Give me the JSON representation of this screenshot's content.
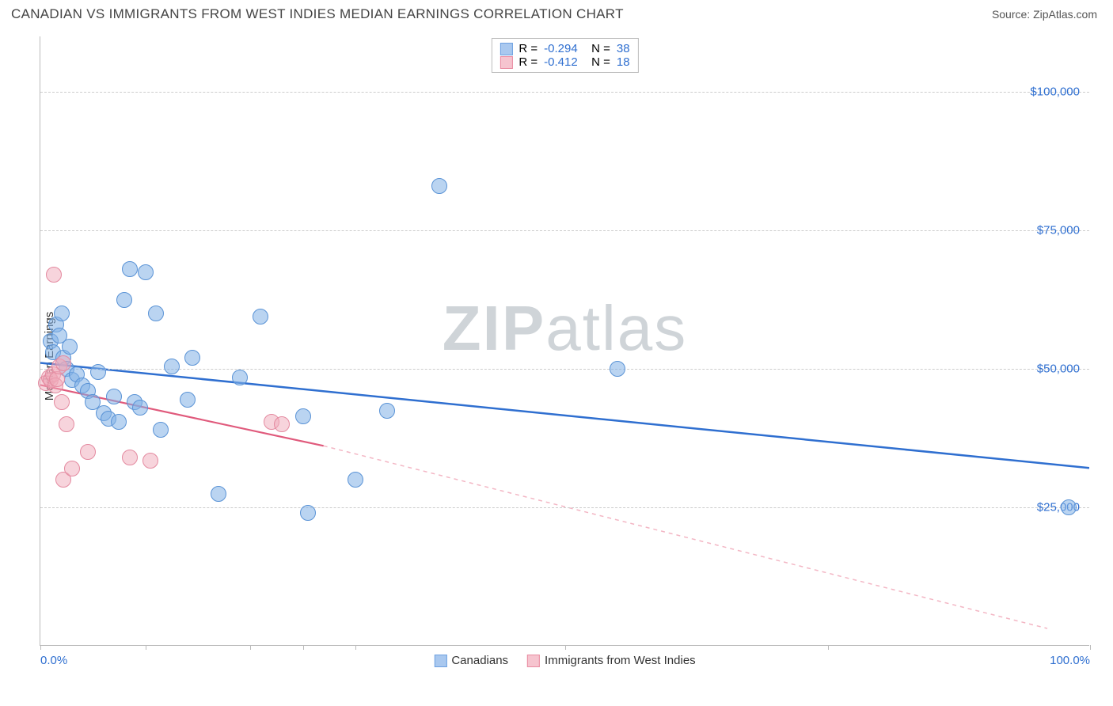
{
  "header": {
    "title": "CANADIAN VS IMMIGRANTS FROM WEST INDIES MEDIAN EARNINGS CORRELATION CHART",
    "source_prefix": "Source: ",
    "source_link": "ZipAtlas.com"
  },
  "chart": {
    "type": "scatter",
    "ylabel": "Median Earnings",
    "background_color": "#ffffff",
    "grid_color": "#cccccc",
    "axis_color": "#bbbbbb",
    "xlim": [
      0,
      100
    ],
    "ylim": [
      0,
      110000
    ],
    "xticks": [
      0,
      10,
      20,
      25,
      30,
      50,
      75,
      100
    ],
    "xtick_labels": {
      "0": "0.0%",
      "100": "100.0%"
    },
    "xtick_color": "#2f6fd0",
    "yticks": [
      25000,
      50000,
      75000,
      100000
    ],
    "ytick_labels": [
      "$25,000",
      "$50,000",
      "$75,000",
      "$100,000"
    ],
    "ytick_color": "#2f6fd0",
    "watermark": {
      "zip": "ZIP",
      "atlas": "atlas",
      "color": "#cfd4d8"
    },
    "legend_top": {
      "r_label": "R =",
      "n_label": "N =",
      "series": [
        {
          "swatch_fill": "#a9c8ef",
          "swatch_border": "#6da0e0",
          "r": "-0.294",
          "n": "38",
          "value_color": "#2f6fd0"
        },
        {
          "swatch_fill": "#f6c4cf",
          "swatch_border": "#e98ba1",
          "r": "-0.412",
          "n": "18",
          "value_color": "#2f6fd0"
        }
      ]
    },
    "legend_bottom": [
      {
        "swatch_fill": "#a9c8ef",
        "swatch_border": "#6da0e0",
        "label": "Canadians"
      },
      {
        "swatch_fill": "#f6c4cf",
        "swatch_border": "#e98ba1",
        "label": "Immigrants from West Indies"
      }
    ],
    "series": [
      {
        "name": "canadians",
        "marker_fill": "rgba(130,176,230,0.55)",
        "marker_stroke": "#5a93d6",
        "marker_radius": 10,
        "trend": {
          "x1": 0,
          "y1": 51000,
          "x2": 100,
          "y2": 32000,
          "stroke": "#2f6fd0",
          "width": 2.5,
          "dash": ""
        },
        "points": [
          {
            "x": 1.0,
            "y": 55000
          },
          {
            "x": 1.2,
            "y": 53000
          },
          {
            "x": 1.5,
            "y": 58000
          },
          {
            "x": 2.0,
            "y": 60000
          },
          {
            "x": 2.2,
            "y": 52000
          },
          {
            "x": 2.5,
            "y": 50000
          },
          {
            "x": 1.8,
            "y": 56000
          },
          {
            "x": 3.0,
            "y": 48000
          },
          {
            "x": 3.5,
            "y": 49000
          },
          {
            "x": 4.0,
            "y": 47000
          },
          {
            "x": 4.5,
            "y": 46000
          },
          {
            "x": 5.0,
            "y": 44000
          },
          {
            "x": 5.5,
            "y": 49500
          },
          {
            "x": 6.0,
            "y": 42000
          },
          {
            "x": 6.5,
            "y": 41000
          },
          {
            "x": 7.0,
            "y": 45000
          },
          {
            "x": 7.5,
            "y": 40500
          },
          {
            "x": 8.0,
            "y": 62500
          },
          {
            "x": 8.5,
            "y": 68000
          },
          {
            "x": 9.0,
            "y": 44000
          },
          {
            "x": 9.5,
            "y": 43000
          },
          {
            "x": 10.0,
            "y": 67500
          },
          {
            "x": 11.0,
            "y": 60000
          },
          {
            "x": 11.5,
            "y": 39000
          },
          {
            "x": 12.5,
            "y": 50500
          },
          {
            "x": 14.0,
            "y": 44500
          },
          {
            "x": 14.5,
            "y": 52000
          },
          {
            "x": 17.0,
            "y": 27500
          },
          {
            "x": 19.0,
            "y": 48500
          },
          {
            "x": 21.0,
            "y": 59500
          },
          {
            "x": 25.0,
            "y": 41500
          },
          {
            "x": 25.5,
            "y": 24000
          },
          {
            "x": 30.0,
            "y": 30000
          },
          {
            "x": 33.0,
            "y": 42500
          },
          {
            "x": 38.0,
            "y": 83000
          },
          {
            "x": 55.0,
            "y": 50000
          },
          {
            "x": 98.0,
            "y": 25000
          },
          {
            "x": 2.8,
            "y": 54000
          }
        ]
      },
      {
        "name": "immigrants",
        "marker_fill": "rgba(240,170,185,0.5)",
        "marker_stroke": "#e48aa0",
        "marker_radius": 10,
        "trend_solid": {
          "x1": 0,
          "y1": 47000,
          "x2": 27,
          "y2": 36000,
          "stroke": "#e05a7c",
          "width": 2.2,
          "dash": ""
        },
        "trend_dash": {
          "x1": 27,
          "y1": 36000,
          "x2": 96,
          "y2": 3000,
          "stroke": "#f3b6c4",
          "width": 1.5,
          "dash": "5,5"
        },
        "points": [
          {
            "x": 0.5,
            "y": 47500
          },
          {
            "x": 0.8,
            "y": 48500
          },
          {
            "x": 1.0,
            "y": 48000
          },
          {
            "x": 1.2,
            "y": 49000
          },
          {
            "x": 1.4,
            "y": 47000
          },
          {
            "x": 1.6,
            "y": 48200
          },
          {
            "x": 1.3,
            "y": 67000
          },
          {
            "x": 1.8,
            "y": 50500
          },
          {
            "x": 2.0,
            "y": 44000
          },
          {
            "x": 2.2,
            "y": 51000
          },
          {
            "x": 2.5,
            "y": 40000
          },
          {
            "x": 2.2,
            "y": 30000
          },
          {
            "x": 3.0,
            "y": 32000
          },
          {
            "x": 4.5,
            "y": 35000
          },
          {
            "x": 8.5,
            "y": 34000
          },
          {
            "x": 10.5,
            "y": 33500
          },
          {
            "x": 22.0,
            "y": 40500
          },
          {
            "x": 23.0,
            "y": 40000
          }
        ]
      }
    ]
  }
}
